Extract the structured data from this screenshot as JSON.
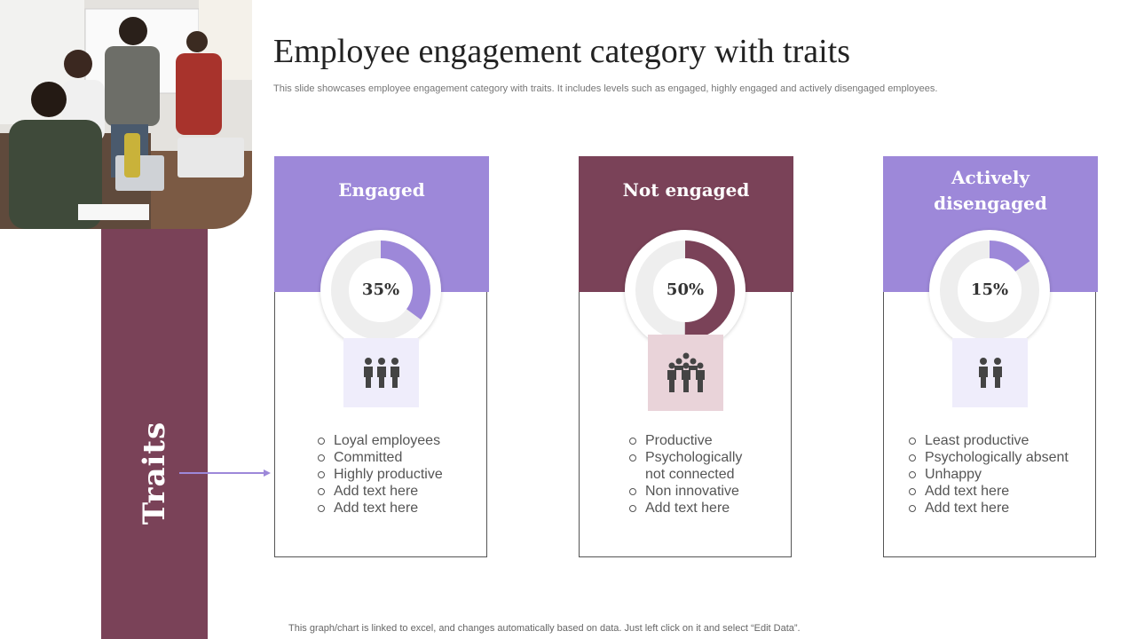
{
  "title": "Employee engagement category with traits",
  "subtitle": "This slide showcases employee engagement category with traits. It includes levels such as engaged, highly engaged and actively disengaged employees.",
  "traits_label": "Traits",
  "footer": "This graph/chart is linked to excel,  and changes automatically based on data. Just left click on it and select “Edit Data”.",
  "colors": {
    "purple": "#9d88d9",
    "plum": "#7a4258",
    "track": "#eeeeee",
    "icon": "#444444"
  },
  "cards": [
    {
      "title": "Engaged",
      "percent_label": "35%",
      "percent": 35,
      "icon": "three-people-icon",
      "color": "#9d88d9",
      "icon_bg": "#efedfb",
      "traits": [
        "Loyal employees",
        "Committed",
        "Highly productive",
        "Add text here",
        "Add text here"
      ]
    },
    {
      "title": "Not engaged",
      "percent_label": "50%",
      "percent": 50,
      "icon": "group-people-icon",
      "color": "#7a4258",
      "icon_bg": "#e9d3d9",
      "traits": [
        "Productive",
        "Psychologically",
        "not connected",
        "Non innovative",
        "Add text here"
      ]
    },
    {
      "title_line1": "Actively",
      "title_line2": "disengaged",
      "percent_label": "15%",
      "percent": 15,
      "icon": "two-people-icon",
      "color": "#9d88d9",
      "icon_bg": "#efedfb",
      "traits": [
        "Least productive",
        "Psychologically absent",
        "Unhappy",
        "Add text here",
        "Add text here"
      ]
    }
  ]
}
